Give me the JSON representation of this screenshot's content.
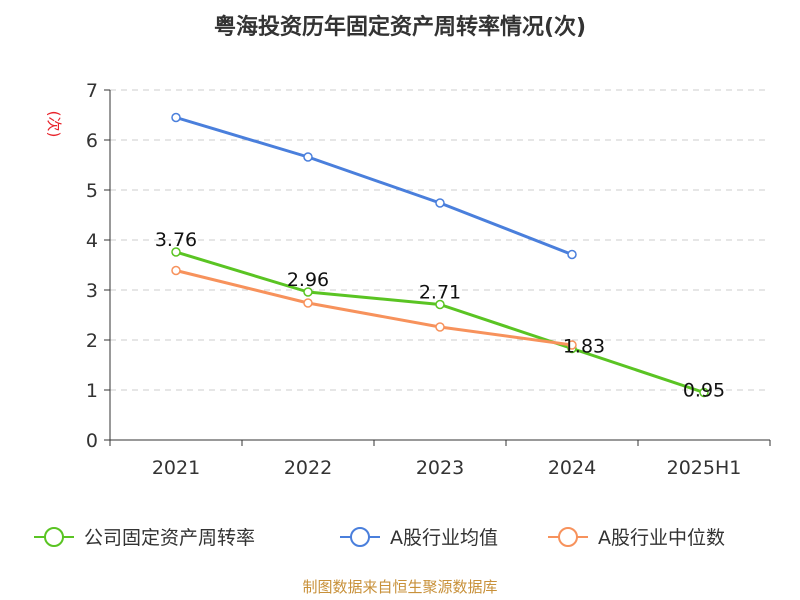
{
  "chart_data": {
    "type": "line",
    "title": "粤海投资历年固定资产周转率情况(次)",
    "ylabel": "(次)",
    "xlabel": "",
    "categories": [
      "2021",
      "2022",
      "2023",
      "2024",
      "2025H1"
    ],
    "ylim": [
      0,
      7
    ],
    "yticks": [
      0,
      1,
      2,
      3,
      4,
      5,
      6,
      7
    ],
    "grid": true,
    "legend_position": "bottom",
    "series": [
      {
        "name": "公司固定资产周转率",
        "color": "#5ac423",
        "values": [
          3.76,
          2.96,
          2.71,
          1.83,
          0.95
        ],
        "labels": [
          "3.76",
          "2.96",
          "2.71",
          "1.83",
          "0.95"
        ]
      },
      {
        "name": "A股行业均值",
        "color": "#4a7fdc",
        "values": [
          6.45,
          5.66,
          4.74,
          3.71,
          null
        ]
      },
      {
        "name": "A股行业中位数",
        "color": "#f7925c",
        "values": [
          3.39,
          2.74,
          2.26,
          1.9,
          null
        ]
      }
    ]
  },
  "source": "制图数据来自恒生聚源数据库"
}
